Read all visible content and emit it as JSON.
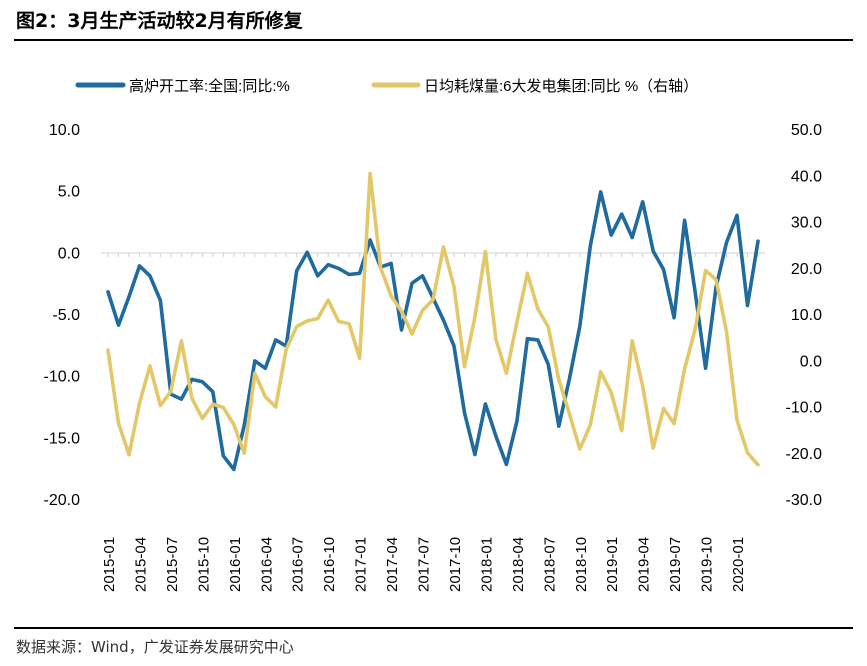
{
  "title": "图2：3月生产活动较2月有所修复",
  "source": "数据来源：Wind，广发证券发展研究中心",
  "colors": {
    "blast_furnace": "#1F6A9E",
    "coal": "#E3C86A",
    "axis": "#000000"
  },
  "chart_data": {
    "type": "line",
    "title": "",
    "x_tick_labels": [
      "2015-01",
      "2015-04",
      "2015-07",
      "2015-10",
      "2016-01",
      "2016-04",
      "2016-07",
      "2016-10",
      "2017-01",
      "2017-04",
      "2017-07",
      "2017-10",
      "2018-01",
      "2018-04",
      "2018-07",
      "2018-10",
      "2019-01",
      "2019-04",
      "2019-07",
      "2019-10",
      "2020-01"
    ],
    "x_months": [
      "2015-01",
      "2015-02",
      "2015-03",
      "2015-04",
      "2015-05",
      "2015-06",
      "2015-07",
      "2015-08",
      "2015-09",
      "2015-10",
      "2015-11",
      "2015-12",
      "2016-01",
      "2016-02",
      "2016-03",
      "2016-04",
      "2016-05",
      "2016-06",
      "2016-07",
      "2016-08",
      "2016-09",
      "2016-10",
      "2016-11",
      "2016-12",
      "2017-01",
      "2017-02",
      "2017-03",
      "2017-04",
      "2017-05",
      "2017-06",
      "2017-07",
      "2017-08",
      "2017-09",
      "2017-10",
      "2017-11",
      "2017-12",
      "2018-01",
      "2018-02",
      "2018-03",
      "2018-04",
      "2018-05",
      "2018-06",
      "2018-07",
      "2018-08",
      "2018-09",
      "2018-10",
      "2018-11",
      "2018-12",
      "2019-01",
      "2019-02",
      "2019-03",
      "2019-04",
      "2019-05",
      "2019-06",
      "2019-07",
      "2019-08",
      "2019-09",
      "2019-10",
      "2019-11",
      "2019-12",
      "2020-01",
      "2020-02",
      "2020-03"
    ],
    "y_left": {
      "min": -20,
      "max": 10,
      "step": 5,
      "ticks": [
        "10.0",
        "5.0",
        "0.0",
        "-5.0",
        "-10.0",
        "-15.0",
        "-20.0"
      ]
    },
    "y_right": {
      "min": -30,
      "max": 50,
      "step": 10,
      "ticks": [
        "50.0",
        "40.0",
        "30.0",
        "20.0",
        "10.0",
        "0.0",
        "-10.0",
        "-20.0",
        "-30.0"
      ]
    },
    "legend": [
      "高炉开工率:全国:同比:%",
      "日均耗煤量:6大发电集团:同比 %（右轴）"
    ],
    "legend_position": "top",
    "series": [
      {
        "name": "高炉开工率:全国:同比:%",
        "axis": "left",
        "values": [
          -3.2,
          -5.9,
          -3.6,
          -1.1,
          -1.9,
          -3.9,
          -11.5,
          -11.9,
          -10.3,
          -10.5,
          -11.3,
          -16.5,
          -17.6,
          -14.0,
          -8.8,
          -9.4,
          -7.1,
          -7.6,
          -1.5,
          0.0,
          -1.9,
          -1.0,
          -1.3,
          -1.8,
          -1.7,
          1.0,
          -1.2,
          -0.9,
          -6.3,
          -2.5,
          -1.9,
          -3.7,
          -5.5,
          -7.6,
          -13.0,
          -16.4,
          -12.3,
          -14.9,
          -17.2,
          -13.7,
          -7.0,
          -7.1,
          -9.1,
          -14.1,
          -10.3,
          -6.0,
          0.5,
          4.9,
          1.4,
          3.1,
          1.2,
          4.1,
          0.1,
          -1.4,
          -5.3,
          2.6,
          -3.2,
          -9.4,
          -2.8,
          0.8,
          3.0,
          -4.3,
          0.9
        ]
      },
      {
        "name": "日均耗煤量:6大发电集团:同比 %（右轴）",
        "axis": "right",
        "values": [
          2.2,
          -13.6,
          -20.4,
          -9.3,
          -1.2,
          -9.8,
          -6.7,
          4.2,
          -8.2,
          -12.6,
          -9.5,
          -10.2,
          -13.9,
          -20.1,
          -2.8,
          -7.9,
          -10.1,
          2.4,
          7.3,
          8.5,
          9.0,
          13.0,
          8.4,
          7.9,
          0.4,
          40.4,
          20.0,
          13.9,
          10.6,
          5.7,
          10.8,
          13.1,
          24.5,
          15.9,
          -1.4,
          9.3,
          23.5,
          4.5,
          -2.8,
          8.2,
          18.8,
          11.1,
          7.2,
          -4.2,
          -11.5,
          -19.2,
          -14.0,
          -2.5,
          -7.0,
          -15.2,
          4.2,
          -5.6,
          -19.0,
          -10.4,
          -13.7,
          -1.9,
          6.7,
          19.4,
          17.4,
          6.2,
          -12.9,
          -20.0,
          -22.6
        ]
      }
    ]
  }
}
